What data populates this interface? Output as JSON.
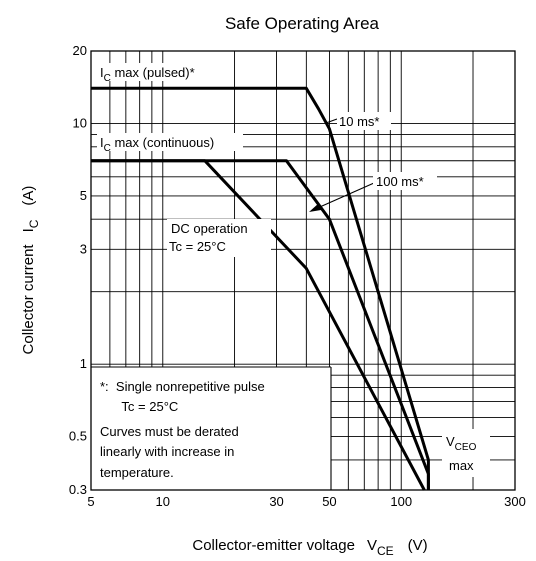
{
  "chart_data": {
    "type": "line",
    "title": "Safe Operating Area",
    "xlabel": {
      "main": "Collector-emitter voltage",
      "symbol": "V",
      "subscript": "CE",
      "unit": "(V)"
    },
    "ylabel": {
      "main": "Collector current",
      "symbol": "I",
      "subscript": "C",
      "unit": "(A)"
    },
    "x_scale": "log",
    "y_scale": "log",
    "xlim": [
      5,
      300
    ],
    "ylim": [
      0.3,
      20
    ],
    "x_ticks": [
      {
        "value": 5,
        "label": "5"
      },
      {
        "value": 10,
        "label": "10"
      },
      {
        "value": 30,
        "label": "30"
      },
      {
        "value": 50,
        "label": "50"
      },
      {
        "value": 100,
        "label": "100"
      },
      {
        "value": 300,
        "label": "300"
      }
    ],
    "y_ticks": [
      {
        "value": 0.3,
        "label": "0.3"
      },
      {
        "value": 0.5,
        "label": "0.5"
      },
      {
        "value": 1,
        "label": "1"
      },
      {
        "value": 3,
        "label": "3"
      },
      {
        "value": 5,
        "label": "5"
      },
      {
        "value": 10,
        "label": "10"
      },
      {
        "value": 20,
        "label": "20"
      }
    ],
    "grid": true,
    "series": [
      {
        "name": "10 ms*",
        "x": [
          5,
          40,
          45,
          50,
          130,
          130
        ],
        "y": [
          14,
          14,
          11.5,
          9.5,
          0.4,
          0.3
        ]
      },
      {
        "name": "100 ms*",
        "x": [
          5,
          33,
          37,
          50,
          130,
          130
        ],
        "y": [
          7,
          7,
          6,
          4,
          0.35,
          0.3
        ]
      },
      {
        "name": "DC operation",
        "x": [
          5,
          15,
          40,
          125
        ],
        "y": [
          7,
          7,
          2.5,
          0.3
        ]
      }
    ],
    "annotations": {
      "ic_pulsed": {
        "main": "I",
        "sub": "C",
        "rest": " max (pulsed)*"
      },
      "ic_continuous": {
        "main": "I",
        "sub": "C",
        "rest": " max (continuous)"
      },
      "label_10ms": "10 ms*",
      "label_100ms": "100 ms*",
      "dc_line1": "DC operation",
      "dc_line2": "Tc = 25°C",
      "vceo": {
        "main": "V",
        "sub": "CEO",
        "line2": "max"
      },
      "note_lines": [
        "*:  Single nonrepetitive pulse",
        "      Tc = 25°C",
        "Curves must be derated",
        "linearly with increase in",
        "temperature."
      ]
    }
  }
}
